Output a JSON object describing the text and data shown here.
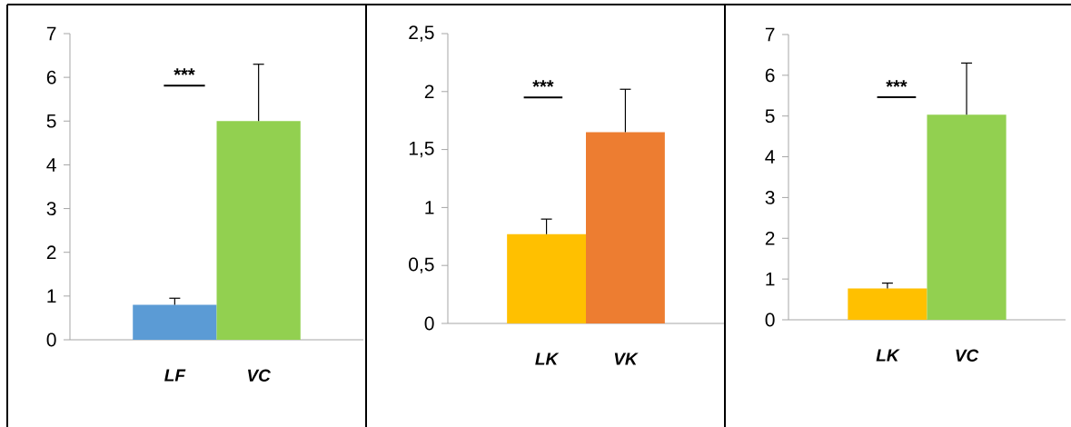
{
  "chart_data": [
    {
      "type": "bar",
      "categories": [
        "LF",
        "VC"
      ],
      "values": [
        0.8,
        5.0
      ],
      "colors": [
        "#5b9bd5",
        "#92d050"
      ],
      "errors": [
        0.15,
        1.3
      ],
      "ylim": [
        0,
        7
      ],
      "yticks": [
        0,
        1,
        2,
        3,
        4,
        5,
        6,
        7
      ],
      "annotations": [
        "***"
      ]
    },
    {
      "type": "bar",
      "categories": [
        "LK",
        "VK"
      ],
      "values": [
        0.77,
        1.65
      ],
      "colors": [
        "#ffc000",
        "#ed7d31"
      ],
      "errors": [
        0.13,
        0.37
      ],
      "ylim": [
        0,
        2.5
      ],
      "yticks": [
        0,
        {
          "value": 0.5,
          "label": "0,5"
        },
        1,
        {
          "value": 1.5,
          "label": "1,5"
        },
        2,
        {
          "value": 2.5,
          "label": "2,5"
        }
      ],
      "annotations": [
        "***"
      ]
    },
    {
      "type": "bar",
      "categories": [
        "LK",
        "VC"
      ],
      "values": [
        0.77,
        5.03
      ],
      "colors": [
        "#ffc000",
        "#92d050"
      ],
      "errors": [
        0.13,
        1.27
      ],
      "ylim": [
        0,
        7
      ],
      "yticks": [
        0,
        1,
        2,
        3,
        4,
        5,
        6,
        7
      ],
      "annotations": [
        "***"
      ]
    }
  ]
}
